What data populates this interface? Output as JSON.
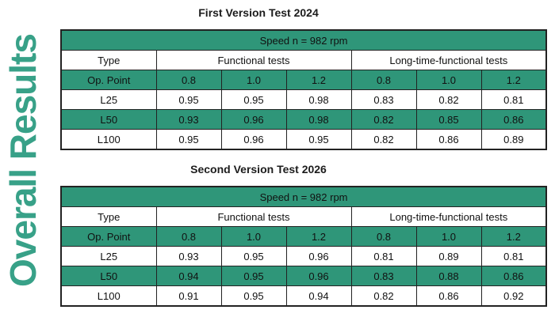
{
  "side_title": {
    "text": "Overall Results",
    "color": "#38A188"
  },
  "colors": {
    "table_green": "#2F9679",
    "border": "#222222",
    "text": "#111111",
    "background": "#ffffff"
  },
  "chart_data": [
    {
      "type": "table",
      "title": "First Version Test 2024",
      "speed_header": "Speed n = 982 rpm",
      "headers": {
        "type": "Type",
        "functional": "Functional tests",
        "long_time": "Long-time-functional tests"
      },
      "op_point_label": "Op. Point",
      "op_points": [
        "0.8",
        "1.0",
        "1.2",
        "0.8",
        "1.0",
        "1.2"
      ],
      "rows": [
        {
          "label": "L25",
          "values": [
            "0.95",
            "0.95",
            "0.98",
            "0.83",
            "0.82",
            "0.81"
          ]
        },
        {
          "label": "L50",
          "values": [
            "0.93",
            "0.96",
            "0.98",
            "0.82",
            "0.85",
            "0.86"
          ]
        },
        {
          "label": "L100",
          "values": [
            "0.95",
            "0.96",
            "0.95",
            "0.82",
            "0.86",
            "0.89"
          ]
        }
      ]
    },
    {
      "type": "table",
      "title": "Second Version Test 2026",
      "speed_header": "Speed n = 982 rpm",
      "headers": {
        "type": "Type",
        "functional": "Functional tests",
        "long_time": "Long-time-functional tests"
      },
      "op_point_label": "Op. Point",
      "op_points": [
        "0.8",
        "1.0",
        "1.2",
        "0.8",
        "1.0",
        "1.2"
      ],
      "rows": [
        {
          "label": "L25",
          "values": [
            "0.93",
            "0.95",
            "0.96",
            "0.81",
            "0.89",
            "0.81"
          ]
        },
        {
          "label": "L50",
          "values": [
            "0.94",
            "0.95",
            "0.96",
            "0.83",
            "0.88",
            "0.86"
          ]
        },
        {
          "label": "L100",
          "values": [
            "0.91",
            "0.95",
            "0.94",
            "0.82",
            "0.86",
            "0.92"
          ]
        }
      ]
    }
  ]
}
